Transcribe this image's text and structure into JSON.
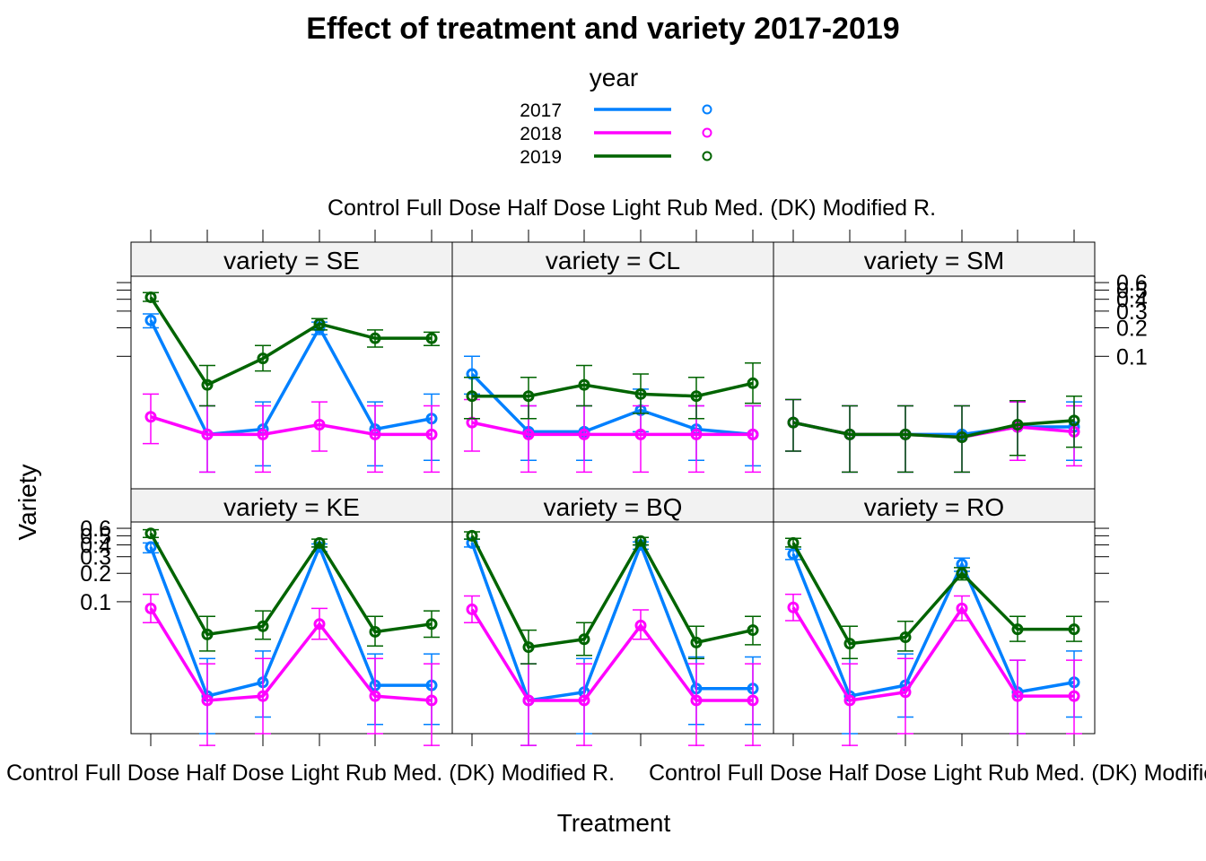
{
  "chart_data": {
    "type": "line",
    "title": "Effect of treatment and variety 2017-2019",
    "xlabel": "Treatment",
    "ylabel": "Variety",
    "legend": {
      "title": "year",
      "placement": "top",
      "entries": [
        {
          "name": "2017",
          "color": "#0080ff"
        },
        {
          "name": "2018",
          "color": "#ff00ff"
        },
        {
          "name": "2019",
          "color": "#006400"
        }
      ]
    },
    "categories": [
      "Control",
      "Full Dose",
      "Half Dose",
      "Light Rub",
      "Med. (DK)",
      "Modified R."
    ],
    "x_tick_text_top": "Control Full Dose Half Dose Light Rub Med. (DK) Modified R.",
    "x_tick_text_bottom": "Control Full Dose Half Dose Light Rub Med. (DK) Modified R.",
    "y_ticks": [
      "0.1",
      "0.2",
      "0.3",
      "0.4",
      "0.5",
      "0.6"
    ],
    "grid": false,
    "error_bars": true,
    "panels": [
      {
        "strip": "variety = SE",
        "series": [
          {
            "name": "2017",
            "values": [
              0.24,
              0.015,
              0.017,
              0.2,
              0.017,
              0.022
            ],
            "lower": [
              0.2,
              0.006,
              0.007,
              0.17,
              0.007,
              0.008
            ],
            "upper": [
              0.28,
              0.03,
              0.033,
              0.23,
              0.033,
              0.04
            ]
          },
          {
            "name": "2018",
            "values": [
              0.023,
              0.015,
              0.015,
              0.019,
              0.015,
              0.015
            ],
            "lower": [
              0.012,
              0.006,
              0.006,
              0.01,
              0.006,
              0.006
            ],
            "upper": [
              0.04,
              0.03,
              0.03,
              0.033,
              0.03,
              0.03
            ]
          },
          {
            "name": "2019",
            "values": [
              0.42,
              0.05,
              0.095,
              0.22,
              0.155,
              0.155
            ],
            "lower": [
              0.38,
              0.03,
              0.07,
              0.19,
              0.125,
              0.13
            ],
            "upper": [
              0.47,
              0.08,
              0.13,
              0.25,
              0.19,
              0.18
            ]
          }
        ]
      },
      {
        "strip": "variety = CL",
        "series": [
          {
            "name": "2017",
            "values": [
              0.065,
              0.016,
              0.016,
              0.027,
              0.017,
              0.015
            ],
            "lower": [
              0.04,
              0.008,
              0.008,
              0.016,
              0.008,
              0.007
            ],
            "upper": [
              0.1,
              0.03,
              0.03,
              0.045,
              0.03,
              0.03
            ]
          },
          {
            "name": "2018",
            "values": [
              0.02,
              0.015,
              0.015,
              0.015,
              0.015,
              0.015
            ],
            "lower": [
              0.01,
              0.006,
              0.006,
              0.006,
              0.006,
              0.006
            ],
            "upper": [
              0.035,
              0.03,
              0.03,
              0.03,
              0.03,
              0.03
            ]
          },
          {
            "name": "2019",
            "values": [
              0.038,
              0.038,
              0.05,
              0.04,
              0.038,
              0.052
            ],
            "lower": [
              0.022,
              0.022,
              0.03,
              0.025,
              0.022,
              0.032
            ],
            "upper": [
              0.06,
              0.06,
              0.08,
              0.065,
              0.06,
              0.085
            ]
          }
        ]
      },
      {
        "strip": "variety = SM",
        "series": [
          {
            "name": "2017",
            "values": [
              0.02,
              0.015,
              0.015,
              0.015,
              0.018,
              0.018
            ],
            "lower": [
              0.01,
              0.006,
              0.006,
              0.006,
              0.008,
              0.008
            ],
            "upper": [
              0.035,
              0.03,
              0.03,
              0.03,
              0.033,
              0.033
            ]
          },
          {
            "name": "2018",
            "values": [
              0.02,
              0.015,
              0.015,
              0.014,
              0.018,
              0.016
            ],
            "lower": [
              0.01,
              0.006,
              0.006,
              0.006,
              0.008,
              0.007
            ],
            "upper": [
              0.035,
              0.03,
              0.03,
              0.03,
              0.033,
              0.03
            ]
          },
          {
            "name": "2019",
            "values": [
              0.02,
              0.015,
              0.015,
              0.014,
              0.019,
              0.021
            ],
            "lower": [
              0.01,
              0.006,
              0.006,
              0.006,
              0.009,
              0.011
            ],
            "upper": [
              0.035,
              0.03,
              0.03,
              0.03,
              0.034,
              0.038
            ]
          }
        ]
      },
      {
        "strip": "variety = KE",
        "series": [
          {
            "name": "2017",
            "values": [
              0.38,
              0.01,
              0.014,
              0.38,
              0.013,
              0.013
            ],
            "lower": [
              0.33,
              0.004,
              0.006,
              0.34,
              0.005,
              0.005
            ],
            "upper": [
              0.42,
              0.025,
              0.03,
              0.41,
              0.028,
              0.028
            ]
          },
          {
            "name": "2018",
            "values": [
              0.085,
              0.009,
              0.01,
              0.058,
              0.01,
              0.009
            ],
            "lower": [
              0.06,
              0.003,
              0.004,
              0.04,
              0.004,
              0.003
            ],
            "upper": [
              0.12,
              0.022,
              0.025,
              0.085,
              0.025,
              0.022
            ]
          },
          {
            "name": "2019",
            "values": [
              0.53,
              0.045,
              0.055,
              0.42,
              0.048,
              0.058
            ],
            "lower": [
              0.48,
              0.03,
              0.04,
              0.38,
              0.034,
              0.042
            ],
            "upper": [
              0.58,
              0.07,
              0.08,
              0.46,
              0.07,
              0.08
            ]
          }
        ]
      },
      {
        "strip": "variety = BQ",
        "series": [
          {
            "name": "2017",
            "values": [
              0.42,
              0.009,
              0.011,
              0.4,
              0.012,
              0.012
            ],
            "lower": [
              0.38,
              0.003,
              0.004,
              0.36,
              0.005,
              0.005
            ],
            "upper": [
              0.46,
              0.022,
              0.025,
              0.43,
              0.026,
              0.026
            ]
          },
          {
            "name": "2018",
            "values": [
              0.083,
              0.009,
              0.009,
              0.056,
              0.009,
              0.009
            ],
            "lower": [
              0.06,
              0.003,
              0.003,
              0.04,
              0.003,
              0.003
            ],
            "upper": [
              0.115,
              0.022,
              0.022,
              0.082,
              0.022,
              0.022
            ]
          },
          {
            "name": "2019",
            "values": [
              0.5,
              0.033,
              0.04,
              0.44,
              0.037,
              0.05
            ],
            "lower": [
              0.46,
              0.022,
              0.027,
              0.4,
              0.025,
              0.035
            ],
            "upper": [
              0.55,
              0.05,
              0.06,
              0.48,
              0.055,
              0.07
            ]
          }
        ]
      },
      {
        "strip": "variety = RO",
        "series": [
          {
            "name": "2017",
            "values": [
              0.32,
              0.01,
              0.013,
              0.25,
              0.011,
              0.014
            ],
            "lower": [
              0.28,
              0.004,
              0.006,
              0.21,
              0.004,
              0.006
            ],
            "upper": [
              0.36,
              0.025,
              0.028,
              0.29,
              0.024,
              0.03
            ]
          },
          {
            "name": "2018",
            "values": [
              0.087,
              0.009,
              0.011,
              0.085,
              0.01,
              0.01
            ],
            "lower": [
              0.063,
              0.003,
              0.004,
              0.063,
              0.004,
              0.004
            ],
            "upper": [
              0.12,
              0.022,
              0.025,
              0.115,
              0.024,
              0.024
            ]
          },
          {
            "name": "2019",
            "values": [
              0.42,
              0.036,
              0.042,
              0.2,
              0.051,
              0.051
            ],
            "lower": [
              0.38,
              0.025,
              0.03,
              0.17,
              0.038,
              0.038
            ],
            "upper": [
              0.47,
              0.055,
              0.062,
              0.23,
              0.07,
              0.07
            ]
          }
        ]
      }
    ]
  }
}
